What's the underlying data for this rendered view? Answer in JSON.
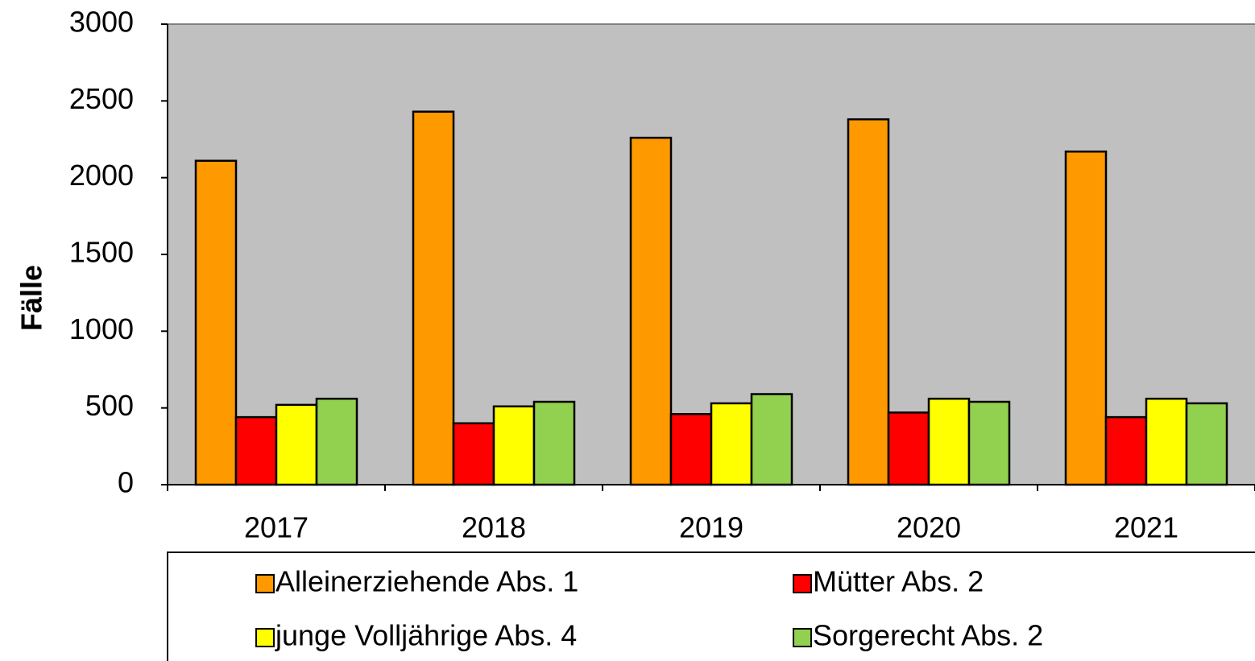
{
  "chart_data": {
    "type": "bar",
    "y_label": "Fälle",
    "categories": [
      "2017",
      "2018",
      "2019",
      "2020",
      "2021"
    ],
    "series": [
      {
        "name": "Alleinerziehende Abs. 1",
        "color": "#ff9900",
        "values": [
          2110,
          2430,
          2260,
          2380,
          2170
        ]
      },
      {
        "name": "Mütter Abs. 2",
        "color": "#ff0000",
        "values": [
          440,
          400,
          460,
          470,
          440
        ]
      },
      {
        "name": "junge Volljährige Abs. 4",
        "color": "#ffff00",
        "values": [
          520,
          510,
          530,
          560,
          560
        ]
      },
      {
        "name": "Sorgerecht Abs. 2",
        "color": "#92d050",
        "values": [
          560,
          540,
          590,
          540,
          530
        ]
      }
    ],
    "ylim": [
      0,
      3000
    ],
    "yticks": [
      0,
      500,
      1000,
      1500,
      2000,
      2500,
      3000
    ],
    "plot_background": "#c0c0c0",
    "legend": "bottom"
  }
}
